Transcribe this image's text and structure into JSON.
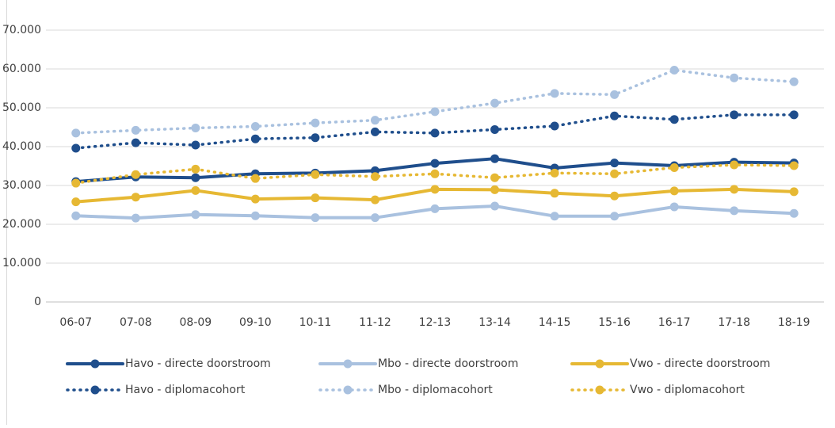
{
  "chart_data": {
    "type": "line",
    "categories": [
      "06-07",
      "07-08",
      "08-09",
      "09-10",
      "10-11",
      "11-12",
      "12-13",
      "13-14",
      "14-15",
      "15-16",
      "16-17",
      "17-18",
      "18-19"
    ],
    "ylim": [
      0,
      70000
    ],
    "yticks": [
      {
        "value": 0,
        "label": "0"
      },
      {
        "value": 10000,
        "label": "10.000"
      },
      {
        "value": 20000,
        "label": "20.000"
      },
      {
        "value": 30000,
        "label": "30.000"
      },
      {
        "value": 40000,
        "label": "40.000"
      },
      {
        "value": 50000,
        "label": "50.000"
      },
      {
        "value": 60000,
        "label": "60.000"
      },
      {
        "value": 70000,
        "label": "70.000"
      }
    ],
    "grid": true,
    "legend": "bottom",
    "series": [
      {
        "name": "Havo - directe doorstroom",
        "color": "#1f4e8c",
        "line_style": "solid",
        "values": [
          31000,
          32200,
          32000,
          33000,
          33200,
          33800,
          35700,
          36900,
          34500,
          35800,
          35100,
          36000,
          35800
        ]
      },
      {
        "name": "Mbo - directe doorstroom",
        "color": "#a9c1df",
        "line_style": "solid",
        "values": [
          22200,
          21600,
          22500,
          22200,
          21700,
          21700,
          24000,
          24700,
          22100,
          22100,
          24500,
          23500,
          22800
        ]
      },
      {
        "name": "Vwo - directe doorstroom",
        "color": "#e6b833",
        "line_style": "solid",
        "values": [
          25800,
          27000,
          28700,
          26500,
          26800,
          26300,
          29000,
          28900,
          28000,
          27300,
          28600,
          29000,
          28400
        ]
      },
      {
        "name": "Havo - diplomacohort",
        "color": "#1f4e8c",
        "line_style": "dotted",
        "values": [
          39600,
          41000,
          40400,
          42000,
          42300,
          43800,
          43500,
          44400,
          45300,
          47900,
          47000,
          48200,
          48200
        ]
      },
      {
        "name": "Mbo - diplomacohort",
        "color": "#a9c1df",
        "line_style": "dotted",
        "values": [
          43500,
          44200,
          44800,
          45200,
          46100,
          46800,
          49000,
          51200,
          53700,
          53400,
          59700,
          57700,
          56700
        ]
      },
      {
        "name": "Vwo - diplomacohort",
        "color": "#e6b833",
        "line_style": "dotted",
        "values": [
          30600,
          32800,
          34200,
          31800,
          32800,
          32300,
          33000,
          32000,
          33200,
          33000,
          34600,
          35300,
          35100
        ]
      }
    ]
  }
}
